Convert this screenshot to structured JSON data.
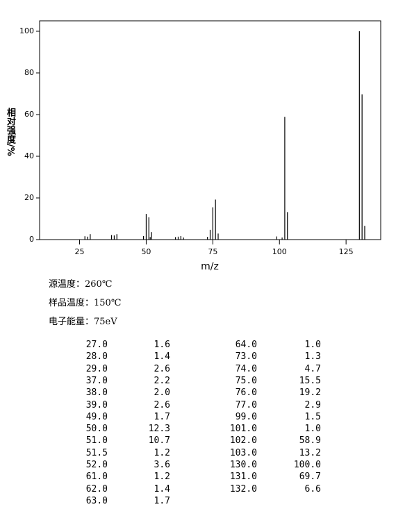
{
  "chart_data": {
    "type": "stick",
    "xlabel": "m/z",
    "ylabel": "相对强度/%",
    "x": [
      27,
      28,
      29,
      37,
      38,
      39,
      49,
      50,
      51,
      51.5,
      52,
      61,
      62,
      63,
      64,
      73,
      74,
      75,
      76,
      77,
      99,
      101,
      102,
      103,
      130,
      131,
      132
    ],
    "values": [
      1.6,
      1.4,
      2.6,
      2.2,
      2.0,
      2.6,
      1.7,
      12.3,
      10.7,
      1.2,
      3.6,
      1.2,
      1.4,
      1.7,
      1.0,
      1.3,
      4.7,
      15.5,
      19.2,
      2.9,
      1.5,
      1.0,
      58.9,
      13.2,
      100.0,
      69.7,
      6.6
    ],
    "color": "#000000",
    "xlim": [
      10,
      138
    ],
    "xticks": [
      25,
      50,
      75,
      100,
      125
    ],
    "ylim": [
      0,
      105
    ],
    "yticks": [
      0,
      20,
      40,
      60,
      80,
      100
    ]
  },
  "notes": [
    "源温度：260℃",
    "样品温度：150℃",
    "电子能量：75eV"
  ],
  "table": {
    "left": [
      [
        "27.0",
        "1.6"
      ],
      [
        "28.0",
        "1.4"
      ],
      [
        "29.0",
        "2.6"
      ],
      [
        "37.0",
        "2.2"
      ],
      [
        "38.0",
        "2.0"
      ],
      [
        "39.0",
        "2.6"
      ],
      [
        "49.0",
        "1.7"
      ],
      [
        "50.0",
        "12.3"
      ],
      [
        "51.0",
        "10.7"
      ],
      [
        "51.5",
        "1.2"
      ],
      [
        "52.0",
        "3.6"
      ],
      [
        "61.0",
        "1.2"
      ],
      [
        "62.0",
        "1.4"
      ],
      [
        "63.0",
        "1.7"
      ]
    ],
    "right": [
      [
        "64.0",
        "1.0"
      ],
      [
        "73.0",
        "1.3"
      ],
      [
        "74.0",
        "4.7"
      ],
      [
        "75.0",
        "15.5"
      ],
      [
        "76.0",
        "19.2"
      ],
      [
        "77.0",
        "2.9"
      ],
      [
        "99.0",
        "1.5"
      ],
      [
        "101.0",
        "1.0"
      ],
      [
        "102.0",
        "58.9"
      ],
      [
        "103.0",
        "13.2"
      ],
      [
        "130.0",
        "100.0"
      ],
      [
        "131.0",
        "69.7"
      ],
      [
        "132.0",
        "6.6"
      ]
    ]
  }
}
